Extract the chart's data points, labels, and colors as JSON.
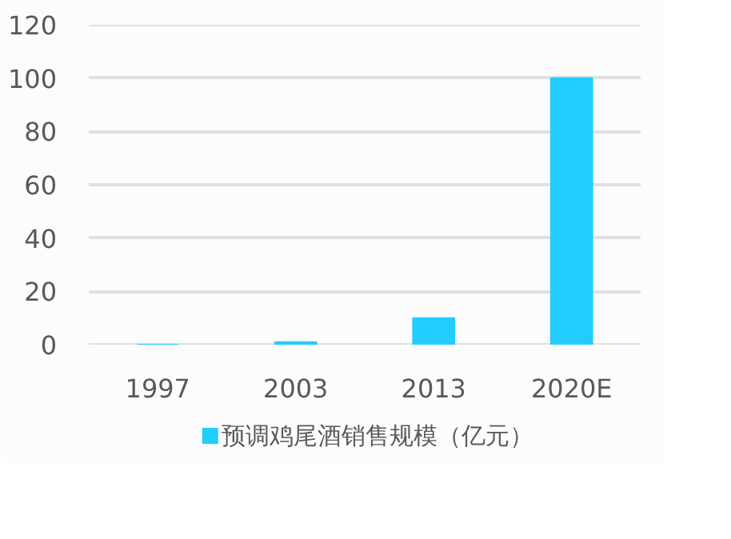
{
  "chart_data": {
    "type": "bar",
    "categories": [
      "1997",
      "2003",
      "2013",
      "2020E"
    ],
    "series": [
      {
        "name": "预调鸡尾酒销售规模（亿元）",
        "color": "#22ccff",
        "values": [
          0,
          1,
          10,
          100
        ]
      }
    ],
    "ylim": [
      0,
      120
    ],
    "yticks": [
      0,
      20,
      40,
      60,
      80,
      100,
      120
    ],
    "grid": "y",
    "legend": "bottom"
  }
}
